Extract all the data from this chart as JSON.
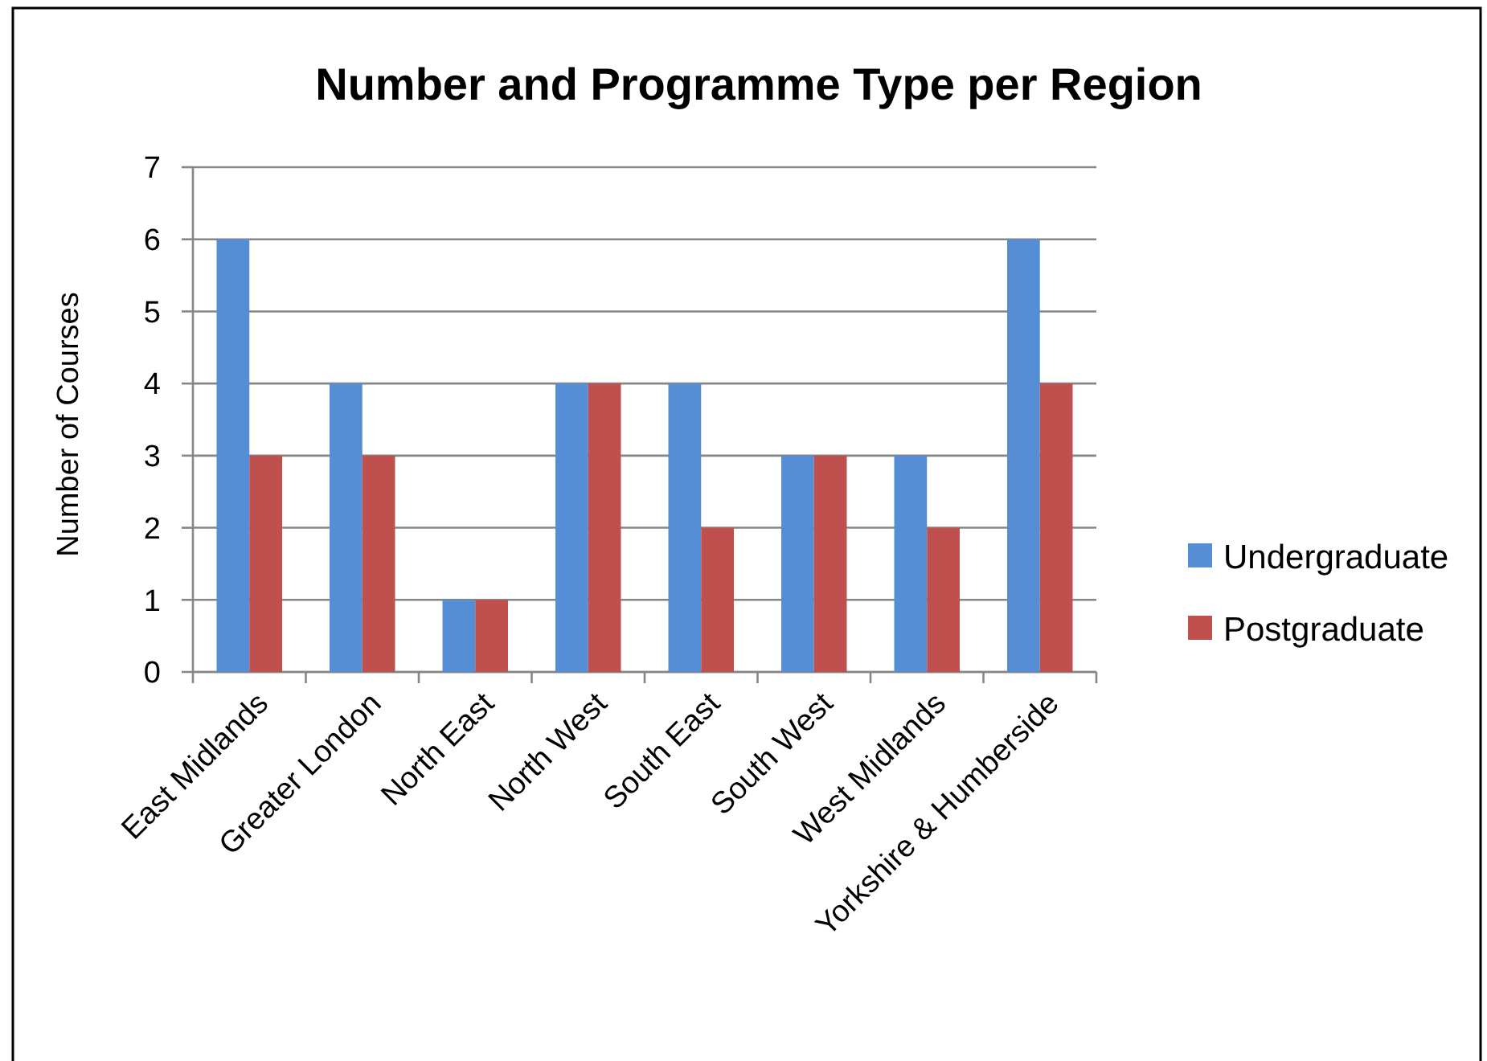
{
  "chart_data": {
    "type": "bar",
    "title": "Number and Programme Type per Region",
    "ylabel": "Number of Courses",
    "categories": [
      "East Midlands",
      "Greater London",
      "North East",
      "North West",
      "South East",
      "South West",
      "West Midlands",
      "Yorkshire & Humberside"
    ],
    "series": [
      {
        "name": "Undergraduate",
        "color": "#558ed5",
        "values": [
          6,
          4,
          1,
          4,
          4,
          3,
          3,
          6
        ]
      },
      {
        "name": "Postgraduate",
        "color": "#c0504d",
        "values": [
          3,
          3,
          1,
          4,
          2,
          3,
          2,
          4
        ]
      }
    ],
    "ylim": [
      0,
      7
    ],
    "yticks": [
      0,
      1,
      2,
      3,
      4,
      5,
      6,
      7
    ],
    "grid": "y",
    "legend": "right"
  }
}
